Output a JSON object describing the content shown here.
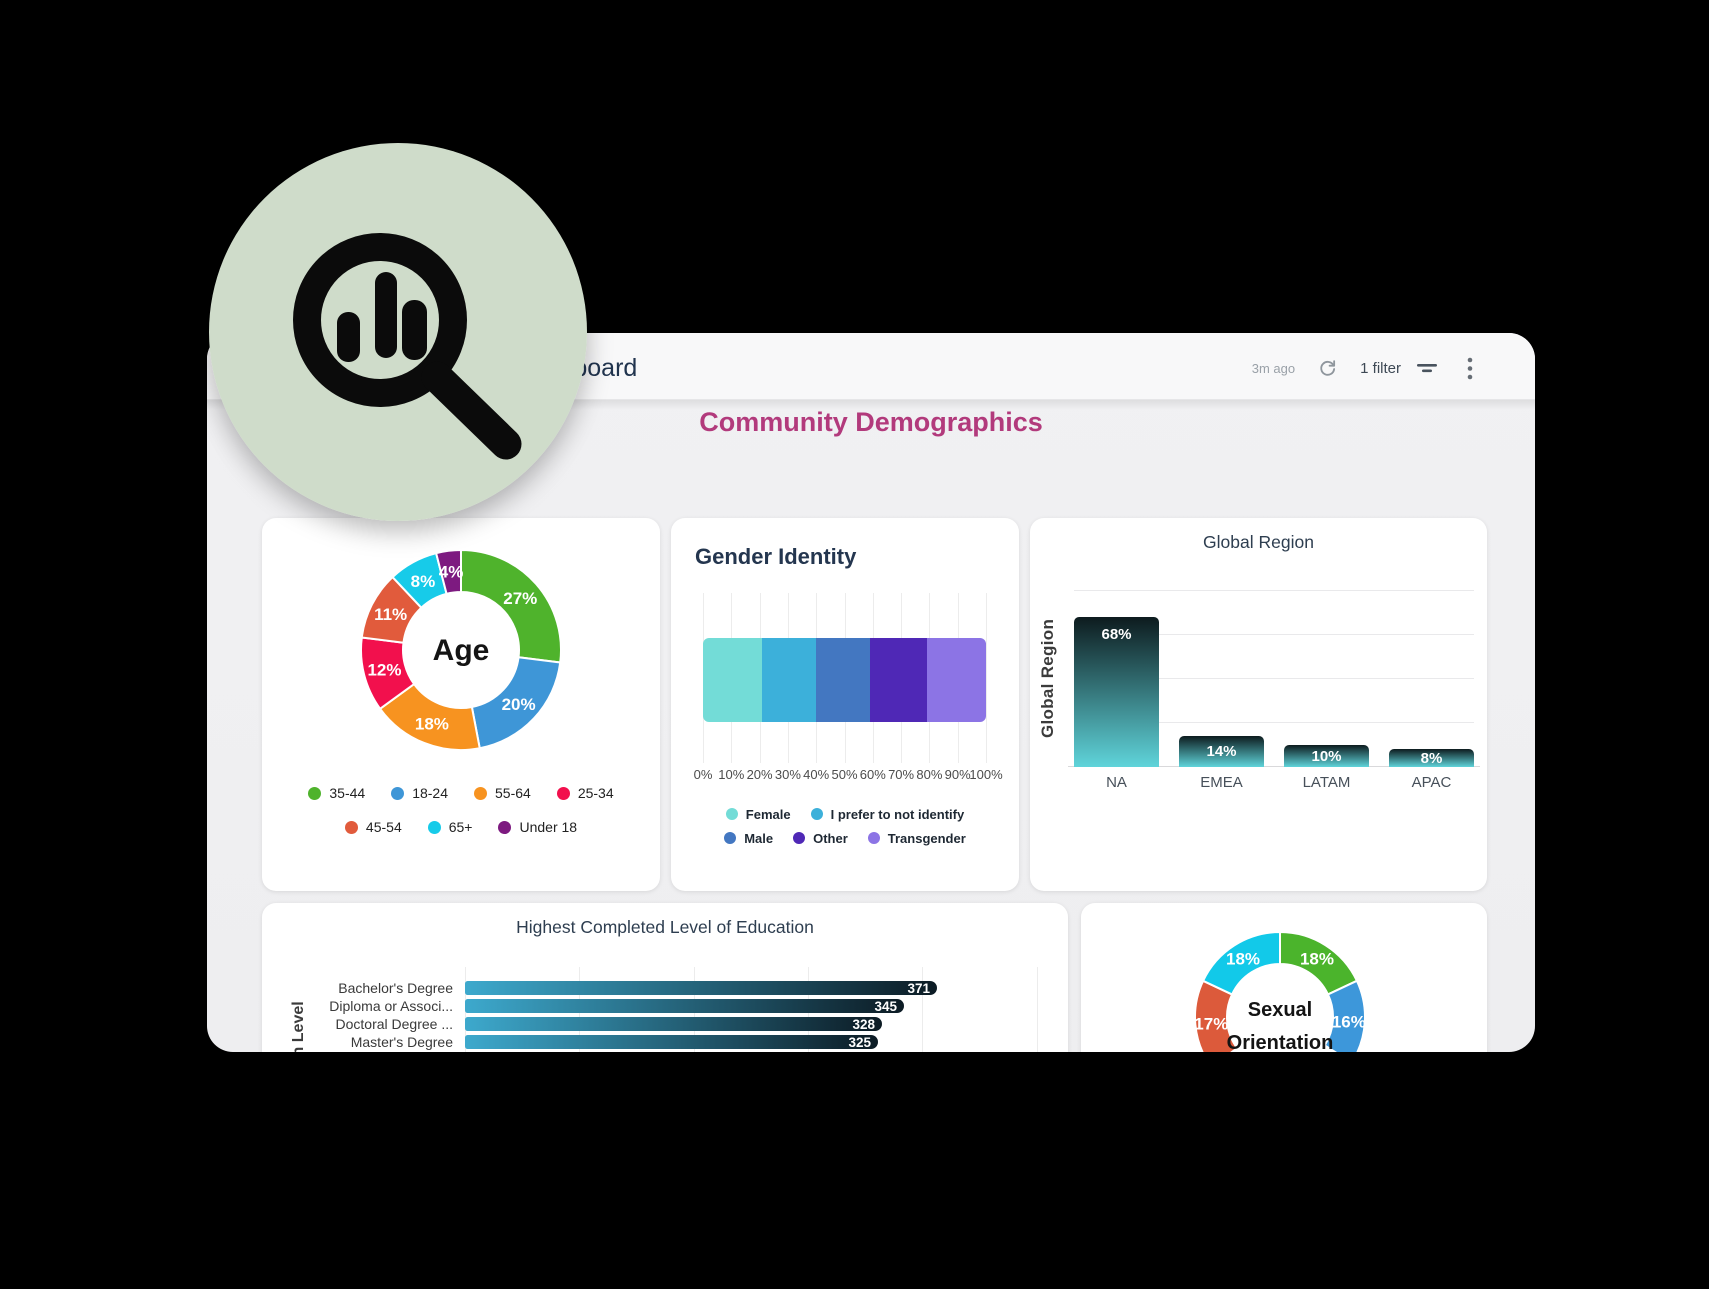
{
  "badge": {
    "icon": "bar-chart-magnifier-icon",
    "bg_color": "#cfdcca",
    "icon_color": "#0b0b0b"
  },
  "window": {
    "header": {
      "title": "Dashboard",
      "updated": "3m ago",
      "refresh_icon": "refresh-icon",
      "filter_label": "1 filter",
      "filter_icon": "filter-sort-icon",
      "menu_icon": "kebab-menu-icon"
    },
    "page_title": "Community Demographics",
    "accent_color": "#b23a7c"
  },
  "chart_data": [
    {
      "id": "age",
      "type": "pie",
      "donut": true,
      "center_label": "Age",
      "slices": [
        {
          "label": "35-44",
          "value": 27,
          "color": "#4fb32c"
        },
        {
          "label": "18-24",
          "value": 20,
          "color": "#3e96d7"
        },
        {
          "label": "55-64",
          "value": 18,
          "color": "#f79320"
        },
        {
          "label": "25-34",
          "value": 12,
          "color": "#f2104d"
        },
        {
          "label": "45-54",
          "value": 11,
          "color": "#e15b3c"
        },
        {
          "label": "65+",
          "value": 8,
          "color": "#17cbe9"
        },
        {
          "label": "Under 18",
          "value": 4,
          "color": "#7d1a80"
        }
      ],
      "legend_rows": [
        [
          "35-44",
          "18-24",
          "55-64",
          "25-34"
        ],
        [
          "45-54",
          "65+",
          "Under 18"
        ]
      ]
    },
    {
      "id": "gender-identity",
      "type": "stacked-bar",
      "title": "Gender Identity",
      "xlim": [
        0,
        100
      ],
      "x_ticks": [
        "0%",
        "10%",
        "20%",
        "30%",
        "40%",
        "50%",
        "60%",
        "70%",
        "80%",
        "90%",
        "100%"
      ],
      "segments": [
        {
          "label": "Female",
          "value": 21,
          "color": "#73dcd7"
        },
        {
          "label": "I prefer to not identify",
          "value": 19,
          "color": "#3cb0da"
        },
        {
          "label": "Male",
          "value": 19,
          "color": "#4377c1"
        },
        {
          "label": "Other",
          "value": 20,
          "color": "#4f28b6"
        },
        {
          "label": "Transgender",
          "value": 21,
          "color": "#8c74e5"
        }
      ],
      "legend_rows": [
        [
          "Female",
          "I prefer to not identify"
        ],
        [
          "Male",
          "Other",
          "Transgender"
        ]
      ]
    },
    {
      "id": "global-region",
      "type": "bar",
      "title": "Global Region",
      "ylabel": "Global Region",
      "categories": [
        "NA",
        "EMEA",
        "LATAM",
        "APAC"
      ],
      "values": [
        68,
        14,
        10,
        8
      ],
      "value_labels": [
        "68%",
        "14%",
        "10%",
        "8%"
      ],
      "ylim": [
        0,
        100
      ],
      "grid_step": 20,
      "bar_gradient": [
        "#0d1b1e",
        "#5fd4da"
      ]
    },
    {
      "id": "education",
      "type": "bar",
      "orientation": "horizontal",
      "title": "Highest Completed Level of Education",
      "ylabel": "Education Level",
      "categories": [
        "Bachelor's Degree",
        "Diploma or Associ...",
        "Doctoral Degree ...",
        "Master's Degree"
      ],
      "values": [
        371,
        345,
        328,
        325
      ],
      "bar_gradient": [
        "#3da9cd",
        "#0c1b24"
      ]
    },
    {
      "id": "sexual-orientation",
      "type": "pie",
      "donut": true,
      "center_label": "Sexual Orientation",
      "slices": [
        {
          "label": "18%",
          "value": 18,
          "color": "#4bb42c"
        },
        {
          "label": "16%",
          "value": 16,
          "color": "#3d97da"
        },
        {
          "label": "",
          "value": 31,
          "color": "transparent",
          "hidden": true
        },
        {
          "label": "17%",
          "value": 17,
          "color": "#dc5a3b"
        },
        {
          "label": "18%",
          "value": 18,
          "color": "#12c9e9"
        }
      ]
    }
  ]
}
